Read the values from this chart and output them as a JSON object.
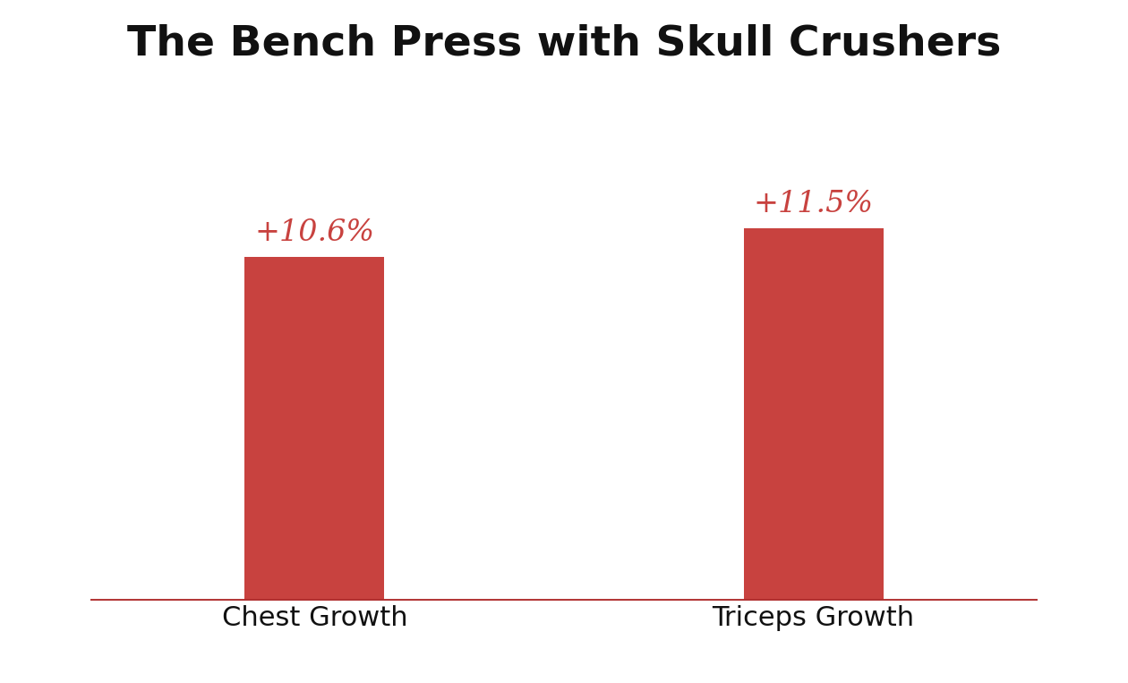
{
  "title": "The Bench Press with Skull Crushers",
  "categories": [
    "Chest Growth",
    "Triceps Growth"
  ],
  "values": [
    10.6,
    11.5
  ],
  "labels": [
    "+10.6%",
    "+11.5%"
  ],
  "bar_color": "#C8423F",
  "label_color": "#C8423F",
  "title_color": "#111111",
  "axis_line_color": "#B03030",
  "background_color": "#FFFFFF",
  "title_fontsize": 34,
  "label_fontsize": 24,
  "tick_fontsize": 22,
  "bar_width": 0.28,
  "ylim": [
    0,
    16
  ],
  "x_positions": [
    1,
    2
  ]
}
